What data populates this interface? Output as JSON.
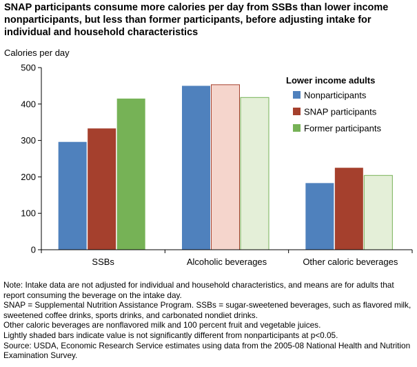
{
  "title": "SNAP participants consume more calories per day from SSBs than lower income nonparticipants, but less than former participants, before adjusting intake for individual and household characteristics",
  "colors": {
    "nonparticipants": "#4f81bd",
    "snap_participants": "#a5402d",
    "former_participants": "#76b256",
    "snap_light_fill": "#f5d5cc",
    "former_light_fill": "#e4efd8",
    "axis": "#000000"
  },
  "chart_data": {
    "type": "bar",
    "ylabel": "Calories per day",
    "ylim": [
      0,
      500
    ],
    "yticks": [
      0,
      100,
      200,
      300,
      400,
      500
    ],
    "categories": [
      "SSBs",
      "Alcoholic beverages",
      "Other caloric beverages"
    ],
    "legend_title": "Lower income adults",
    "legend_position": "top-right",
    "grid": false,
    "series": [
      {
        "name": "Nonparticipants",
        "values": [
          296,
          450,
          183
        ],
        "light": [
          false,
          false,
          false
        ]
      },
      {
        "name": "SNAP participants",
        "values": [
          333,
          453,
          225
        ],
        "light": [
          false,
          true,
          false
        ]
      },
      {
        "name": "Former participants",
        "values": [
          415,
          418,
          204
        ],
        "light": [
          false,
          true,
          true
        ]
      }
    ]
  },
  "notes": [
    "Note: Intake data are not adjusted for individual and household characteristics, and means are for adults that report consuming the beverage on the intake day.",
    "SNAP = Supplemental Nutrition Assistance Program. SSBs = sugar-sweetened beverages, such as flavored milk, sweetened coffee drinks, sports drinks, and carbonated nondiet drinks.",
    "Other caloric beverages are nonflavored milk and 100 percent fruit and vegetable juices.",
    "Lightly shaded bars indicate value is not significantly different from nonparticipants at p<0.05.",
    "Source: USDA, Economic Research Service estimates using data from the 2005-08 National Health and Nutrition Examination Survey."
  ]
}
